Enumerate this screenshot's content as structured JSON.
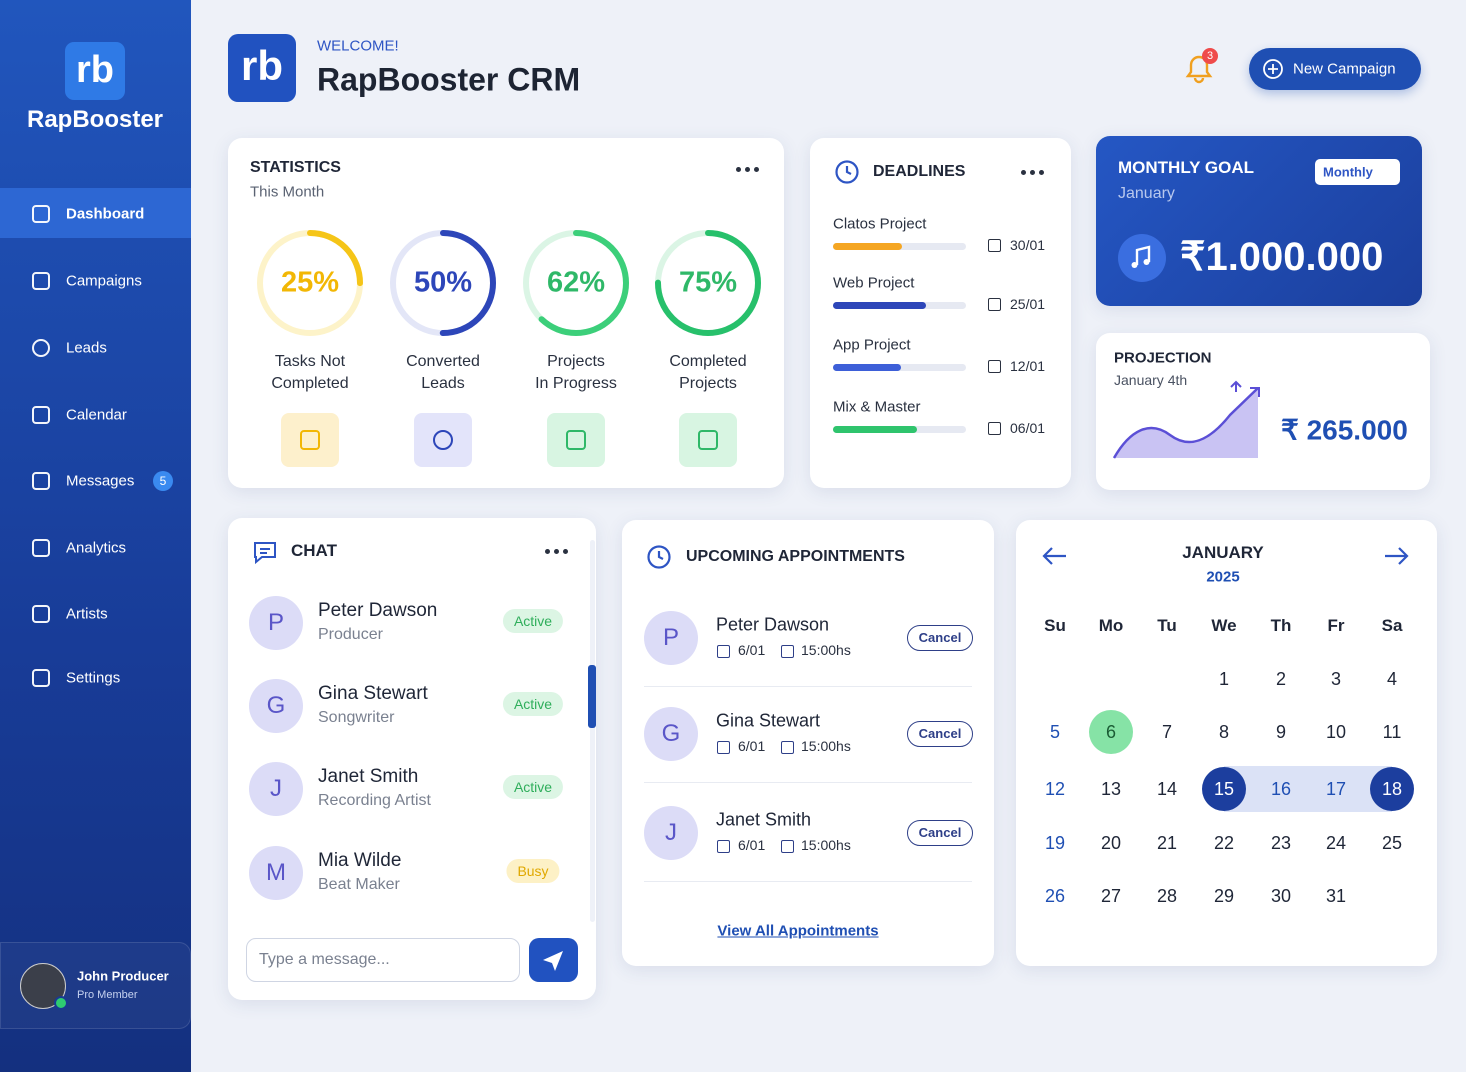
{
  "sidebar": {
    "brand": "RapBooster",
    "nav": [
      {
        "label": "Dashboard"
      },
      {
        "label": "Campaigns"
      },
      {
        "label": "Leads"
      },
      {
        "label": "Calendar"
      },
      {
        "label": "Messages",
        "badge": "5"
      },
      {
        "label": "Analytics"
      },
      {
        "label": "Artists"
      },
      {
        "label": "Settings"
      }
    ],
    "user": {
      "name": "John Producer",
      "role": "Pro Member"
    }
  },
  "header": {
    "welcome": "WELCOME!",
    "title": "RapBooster CRM",
    "notifications": "3",
    "button": "New Campaign"
  },
  "statistics": {
    "title": "STATISTICS",
    "subtitle": "This Month",
    "items": [
      {
        "percent": {
          "value": 25,
          "label": "25%"
        },
        "caption": [
          "Tasks Not",
          "Completed"
        ]
      },
      {
        "percent": {
          "value": 50,
          "label": "50%"
        },
        "caption": [
          "Converted",
          "Leads"
        ]
      },
      {
        "percent": {
          "value": 62,
          "label": "62%"
        },
        "caption": [
          "Projects",
          "In Progress"
        ]
      },
      {
        "percent": {
          "value": 75,
          "label": "75%"
        },
        "caption": [
          "Completed",
          "Projects"
        ]
      }
    ]
  },
  "deadlines": {
    "title": "DEADLINES",
    "items": [
      {
        "name": "Clatos Project",
        "date": "30/01",
        "progress": 52
      },
      {
        "name": "Web Project",
        "date": "25/01",
        "progress": 70
      },
      {
        "name": "App Project",
        "date": "12/01",
        "progress": 51
      },
      {
        "name": "Mix & Master",
        "date": "06/01",
        "progress": 63
      }
    ]
  },
  "monthly_goal": {
    "title": "MONTHLY GOAL",
    "month": "January",
    "period": "Monthly",
    "amount": "₹1.000.000"
  },
  "projection": {
    "title": "PROJECTION",
    "date": "January 4th",
    "amount": "₹ 265.000"
  },
  "chat": {
    "title": "CHAT",
    "contacts": [
      {
        "initial": "P",
        "name": "Peter Dawson",
        "role": "Producer",
        "status": "Active"
      },
      {
        "initial": "G",
        "name": "Gina Stewart",
        "role": "Songwriter",
        "status": "Active"
      },
      {
        "initial": "J",
        "name": "Janet Smith",
        "role": "Recording Artist",
        "status": "Active"
      },
      {
        "initial": "M",
        "name": "Mia Wilde",
        "role": "Beat Maker",
        "status": "Busy"
      }
    ],
    "placeholder": "Type a message..."
  },
  "appointments": {
    "title": "UPCOMING APPOINTMENTS",
    "items": [
      {
        "initial": "P",
        "name": "Peter Dawson",
        "date": "6/01",
        "time": "15:00hs",
        "action": "Cancel"
      },
      {
        "initial": "G",
        "name": "Gina Stewart",
        "date": "6/01",
        "time": "15:00hs",
        "action": "Cancel"
      },
      {
        "initial": "J",
        "name": "Janet Smith",
        "date": "6/01",
        "time": "15:00hs",
        "action": "Cancel"
      }
    ],
    "link": "View All Appointments"
  },
  "calendar": {
    "month": "JANUARY",
    "year": "2025",
    "weekdays": [
      "Su",
      "Mo",
      "Tu",
      "We",
      "Th",
      "Fr",
      "Sa"
    ],
    "weeks": [
      [
        null,
        null,
        null,
        1,
        2,
        3,
        4
      ],
      [
        5,
        6,
        7,
        8,
        9,
        10,
        11
      ],
      [
        12,
        13,
        14,
        15,
        16,
        17,
        18
      ],
      [
        19,
        20,
        21,
        22,
        23,
        24,
        25
      ],
      [
        26,
        27,
        28,
        29,
        30,
        31,
        null
      ]
    ],
    "today": 6,
    "range": [
      15,
      18
    ]
  }
}
